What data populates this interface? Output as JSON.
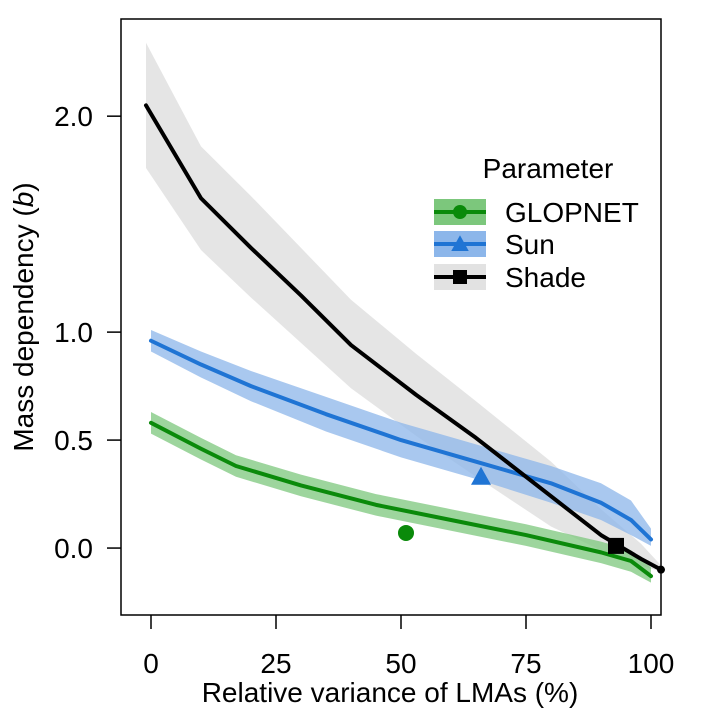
{
  "chart_data": {
    "type": "line",
    "xlabel": "Relative variance of LMAs (%)",
    "ylabel_main": "Mass dependency",
    "ylabel_symbol": "b",
    "xlim": [
      -6,
      102
    ],
    "ylim": [
      -0.31,
      2.45
    ],
    "grid": false,
    "x_ticks": [
      0,
      25,
      50,
      75,
      100
    ],
    "x_tick_labels": [
      "0",
      "25",
      "50",
      "75",
      "100"
    ],
    "y_ticks": [
      0.0,
      0.5,
      1.0,
      2.0
    ],
    "y_tick_labels": [
      "0.0",
      "0.5",
      "1.0",
      "2.0"
    ],
    "legend": {
      "title": "Parameter",
      "position": "center-right",
      "entries": [
        "GLOPNET",
        "Sun",
        "Shade"
      ]
    },
    "series": [
      {
        "name": "GLOPNET",
        "color": "#0a8a0a",
        "band_color": "#7cc77c",
        "marker": "circle",
        "x": [
          0,
          10,
          17,
          30,
          45,
          60,
          75,
          90,
          96,
          100
        ],
        "y": [
          0.58,
          0.46,
          0.38,
          0.29,
          0.2,
          0.13,
          0.06,
          -0.02,
          -0.06,
          -0.13
        ],
        "lower": [
          0.53,
          0.41,
          0.33,
          0.24,
          0.15,
          0.08,
          0.01,
          -0.07,
          -0.11,
          -0.16
        ],
        "upper": [
          0.63,
          0.51,
          0.43,
          0.34,
          0.25,
          0.18,
          0.11,
          0.03,
          -0.01,
          -0.09
        ],
        "point": {
          "x": 51,
          "y": 0.07
        }
      },
      {
        "name": "Sun",
        "color": "#1f74d4",
        "band_color": "#8cb6ea",
        "marker": "triangle",
        "x": [
          0,
          10,
          20,
          35,
          50,
          65,
          80,
          90,
          96,
          100
        ],
        "y": [
          0.96,
          0.85,
          0.75,
          0.62,
          0.5,
          0.4,
          0.3,
          0.21,
          0.13,
          0.04
        ],
        "lower": [
          0.91,
          0.79,
          0.68,
          0.54,
          0.42,
          0.32,
          0.21,
          0.13,
          0.06,
          0.01
        ],
        "upper": [
          1.01,
          0.91,
          0.82,
          0.7,
          0.58,
          0.48,
          0.38,
          0.3,
          0.22,
          0.09
        ],
        "point": {
          "x": 66,
          "y": 0.33
        }
      },
      {
        "name": "Shade",
        "color": "#000000",
        "band_color": "#e2e2e2",
        "marker": "square",
        "x": [
          -1,
          10,
          20,
          30,
          40,
          53,
          65,
          80,
          90,
          98,
          102
        ],
        "y": [
          2.05,
          1.62,
          1.39,
          1.17,
          0.94,
          0.71,
          0.51,
          0.24,
          0.06,
          -0.05,
          -0.1
        ],
        "lower": [
          1.76,
          1.38,
          1.16,
          0.95,
          0.74,
          0.52,
          0.33,
          0.1,
          -0.01,
          -0.08,
          -0.11
        ],
        "upper": [
          2.34,
          1.86,
          1.63,
          1.39,
          1.15,
          0.9,
          0.68,
          0.4,
          0.18,
          0.02,
          -0.08
        ],
        "point": {
          "x": 93,
          "y": 0.01
        }
      }
    ]
  }
}
